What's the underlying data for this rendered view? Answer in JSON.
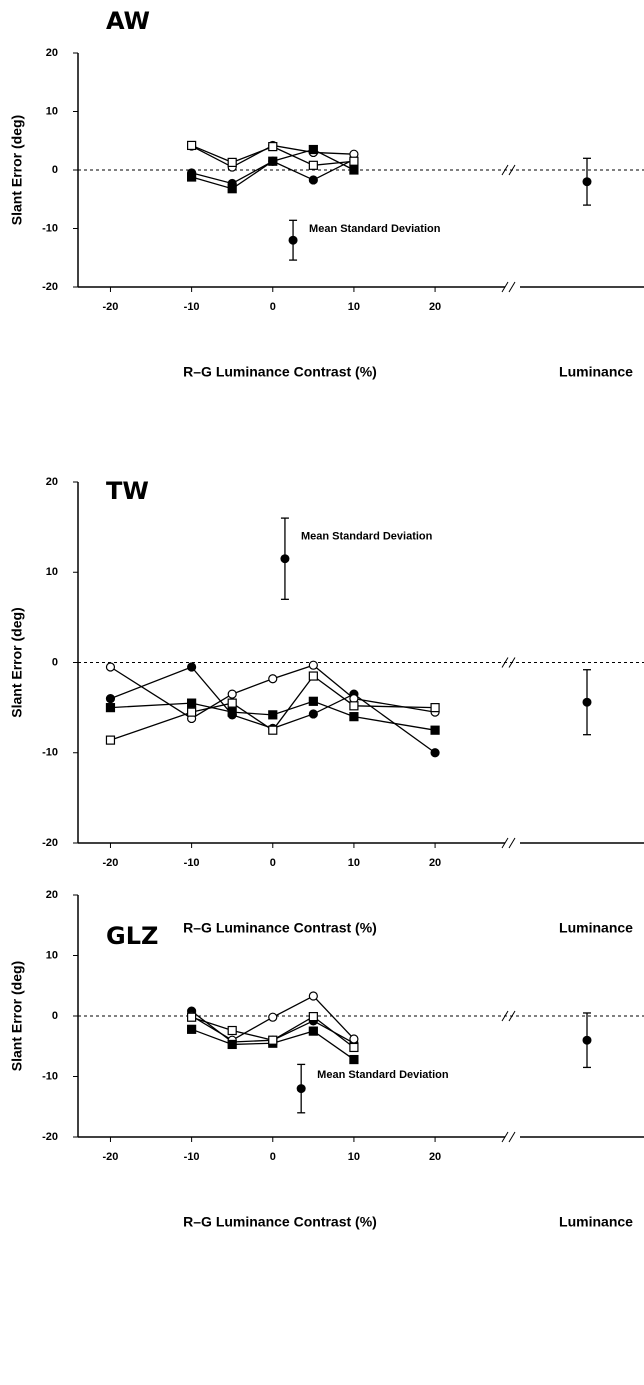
{
  "chart_data": [
    {
      "type": "line",
      "title": "AW",
      "ylabel": "Slant Error (deg)",
      "xlabel": "R–G Luminance Contrast (%)",
      "x": [
        -10,
        -5,
        0,
        5,
        10
      ],
      "series": [
        {
          "marker": "circle",
          "filled": true,
          "color": "#000000",
          "values": [
            -0.5,
            -2.3,
            1.5,
            -1.7,
            1.8
          ]
        },
        {
          "marker": "circle",
          "filled": false,
          "color": "#000000",
          "values": [
            4.1,
            0.5,
            4.2,
            3.0,
            2.7
          ]
        },
        {
          "marker": "square",
          "filled": true,
          "color": "#000000",
          "values": [
            -1.2,
            -3.2,
            1.5,
            3.5,
            0.0
          ]
        },
        {
          "marker": "square",
          "filled": false,
          "color": "#000000",
          "values": [
            4.2,
            1.3,
            4.0,
            0.8,
            1.5
          ]
        }
      ],
      "mean_sd": {
        "label": "Mean Standard Deviation",
        "x": 2.5,
        "y": -12,
        "error": 3.4
      },
      "luminance": {
        "label": "Luminance",
        "y": -2,
        "error": 4
      },
      "reference_line": 0,
      "xlim": [
        -24,
        28
      ],
      "xticks": [
        -20,
        -10,
        0,
        10,
        20
      ],
      "ylim": [
        -20,
        20
      ],
      "yticks": [
        20,
        10,
        0,
        -10,
        -20
      ]
    },
    {
      "type": "line",
      "title": "TW",
      "ylabel": "Slant Error (deg)",
      "xlabel": "R–G Luminance Contrast (%)",
      "x": [
        -20,
        -10,
        -5,
        0,
        5,
        10,
        20
      ],
      "series": [
        {
          "marker": "circle",
          "filled": true,
          "color": "#000000",
          "values": [
            -4.0,
            -0.5,
            -5.8,
            -7.3,
            -5.7,
            -3.5,
            -10.0
          ]
        },
        {
          "marker": "circle",
          "filled": false,
          "color": "#000000",
          "values": [
            -0.5,
            -6.2,
            -3.5,
            -1.8,
            -0.3,
            -4.0,
            -5.5
          ]
        },
        {
          "marker": "square",
          "filled": true,
          "color": "#000000",
          "values": [
            -5.0,
            -4.5,
            -5.5,
            -5.8,
            -4.3,
            -6.0,
            -7.5
          ]
        },
        {
          "marker": "square",
          "filled": false,
          "color": "#000000",
          "values": [
            -8.6,
            -5.5,
            -4.5,
            -7.5,
            -1.5,
            -4.8,
            -5.0
          ]
        }
      ],
      "mean_sd": {
        "label": "Mean Standard Deviation",
        "x": 1.5,
        "y": 11.5,
        "error": 4.5
      },
      "luminance": {
        "label": "Luminance",
        "y": -4.4,
        "error": 3.6
      },
      "reference_line": 0,
      "xlim": [
        -24,
        28
      ],
      "xticks": [
        -20,
        -10,
        0,
        10,
        20
      ],
      "ylim": [
        -20,
        20
      ],
      "yticks": [
        20,
        10,
        0,
        -10,
        -20
      ]
    },
    {
      "type": "line",
      "title": "GLZ",
      "ylabel": "Slant Error (deg)",
      "xlabel": "R–G Luminance Contrast (%)",
      "x": [
        -10,
        -5,
        0,
        5,
        10
      ],
      "series": [
        {
          "marker": "circle",
          "filled": true,
          "color": "#000000",
          "values": [
            0.8,
            -4.3,
            -4.0,
            -0.8,
            -4.5
          ]
        },
        {
          "marker": "circle",
          "filled": false,
          "color": "#000000",
          "values": [
            0.0,
            -4.0,
            -0.2,
            3.3,
            -3.8
          ]
        },
        {
          "marker": "square",
          "filled": true,
          "color": "#000000",
          "values": [
            -2.2,
            -4.7,
            -4.5,
            -2.5,
            -7.2
          ]
        },
        {
          "marker": "square",
          "filled": false,
          "color": "#000000",
          "values": [
            -0.2,
            -2.4,
            -4.0,
            -0.1,
            -5.2
          ]
        }
      ],
      "mean_sd": {
        "label": "Mean Standard Deviation",
        "x": 3.5,
        "y": -12,
        "error": 4
      },
      "luminance": {
        "label": "Luminance",
        "y": -4,
        "error": 4.5
      },
      "reference_line": 0,
      "xlim": [
        -24,
        28
      ],
      "xticks": [
        -20,
        -10,
        0,
        10,
        20
      ],
      "ylim": [
        -20,
        20
      ],
      "yticks": [
        20,
        10,
        0,
        -10,
        -20
      ]
    }
  ]
}
